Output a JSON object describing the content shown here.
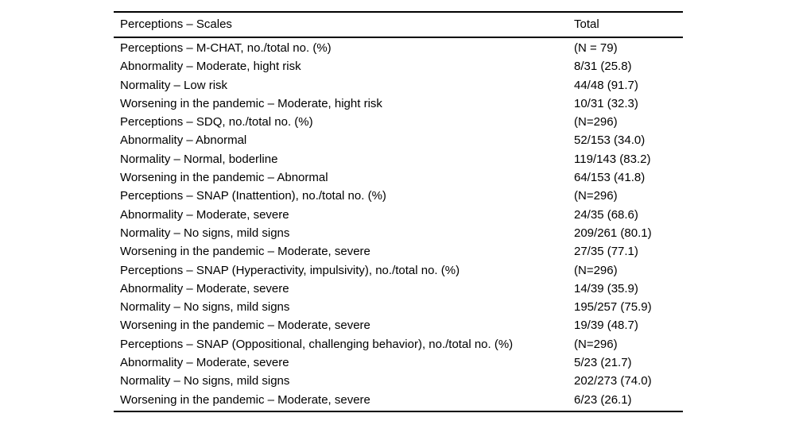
{
  "table": {
    "header": {
      "col1": "Perceptions – Scales",
      "col2": "Total"
    },
    "rows": [
      {
        "label": "Perceptions – M-CHAT, no./total no. (%)",
        "value": "(N = 79)"
      },
      {
        "label": "Abnormality – Moderate, hight risk",
        "value": "8/31 (25.8)"
      },
      {
        "label": "Normality – Low risk",
        "value": "44/48 (91.7)"
      },
      {
        "label": "Worsening in the pandemic – Moderate, hight risk",
        "value": "10/31 (32.3)"
      },
      {
        "label": "Perceptions – SDQ, no./total no. (%)",
        "value": "(N=296)"
      },
      {
        "label": "Abnormality – Abnormal",
        "value": "52/153 (34.0)"
      },
      {
        "label": "Normality – Normal, boderline",
        "value": "119/143 (83.2)"
      },
      {
        "label": "Worsening in the pandemic – Abnormal",
        "value": "64/153 (41.8)"
      },
      {
        "label": "Perceptions – SNAP (Inattention), no./total no. (%)",
        "value": "(N=296)"
      },
      {
        "label": "Abnormality – Moderate, severe",
        "value": "24/35 (68.6)"
      },
      {
        "label": "Normality – No signs, mild signs",
        "value": "209/261 (80.1)"
      },
      {
        "label": "Worsening in the pandemic – Moderate, severe",
        "value": "27/35 (77.1)"
      },
      {
        "label": "Perceptions – SNAP (Hyperactivity, impulsivity), no./total no. (%)",
        "value": "(N=296)"
      },
      {
        "label": "Abnormality – Moderate, severe",
        "value": "14/39 (35.9)"
      },
      {
        "label": "Normality – No signs, mild signs",
        "value": "195/257 (75.9)"
      },
      {
        "label": "Worsening in the pandemic – Moderate, severe",
        "value": "19/39 (48.7)"
      },
      {
        "label": "Perceptions – SNAP (Oppositional, challenging behavior), no./total no. (%)",
        "value": "(N=296)"
      },
      {
        "label": "Abnormality – Moderate, severe",
        "value": "5/23 (21.7)"
      },
      {
        "label": "Normality – No signs, mild signs",
        "value": "202/273 (74.0)"
      },
      {
        "label": "Worsening in the pandemic – Moderate, severe",
        "value": "6/23 (26.1)"
      }
    ]
  }
}
